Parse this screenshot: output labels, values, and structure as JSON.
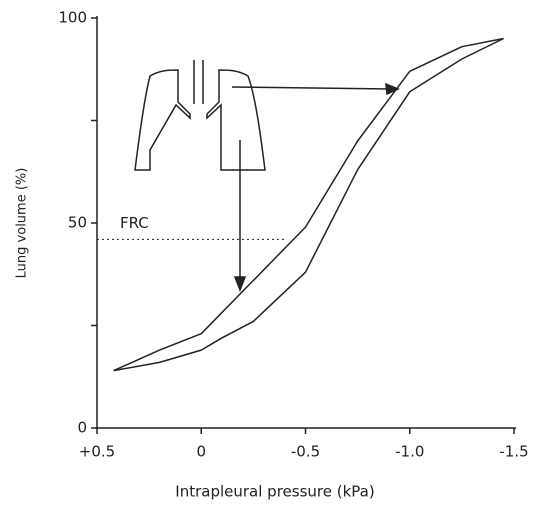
{
  "chart_data": {
    "type": "line",
    "x_label": "Intrapleural pressure (kPa)",
    "y_label": "Lung volume (%)",
    "xlim": [
      0.5,
      -1.5
    ],
    "xticks": [
      {
        "value": 0.5,
        "label": "+0.5"
      },
      0,
      -0.5,
      {
        "value": -1.0,
        "label": "-1.0"
      },
      -1.5
    ],
    "ylim": [
      0,
      100
    ],
    "yticks": [
      0,
      50,
      100
    ],
    "yminor_ticks": [
      25,
      75
    ],
    "series": [
      {
        "color": "#222222",
        "x": [
          0.42,
          0.2,
          0,
          -0.25,
          -0.5,
          -0.75,
          -1.0,
          -1.25,
          -1.45
        ],
        "values": [
          14,
          19,
          23,
          36,
          49,
          70,
          87,
          93,
          95
        ]
      },
      {
        "color": "#222222",
        "x": [
          0.42,
          0.2,
          0,
          -0.1,
          -0.25,
          -0.5,
          -0.75,
          -1.0,
          -1.25,
          -1.45
        ],
        "values": [
          14,
          16,
          19,
          22,
          26,
          38,
          63,
          82,
          90,
          95
        ]
      }
    ],
    "frc": {
      "label": "FRC",
      "volume": 46,
      "pressure_end": -0.4
    }
  }
}
